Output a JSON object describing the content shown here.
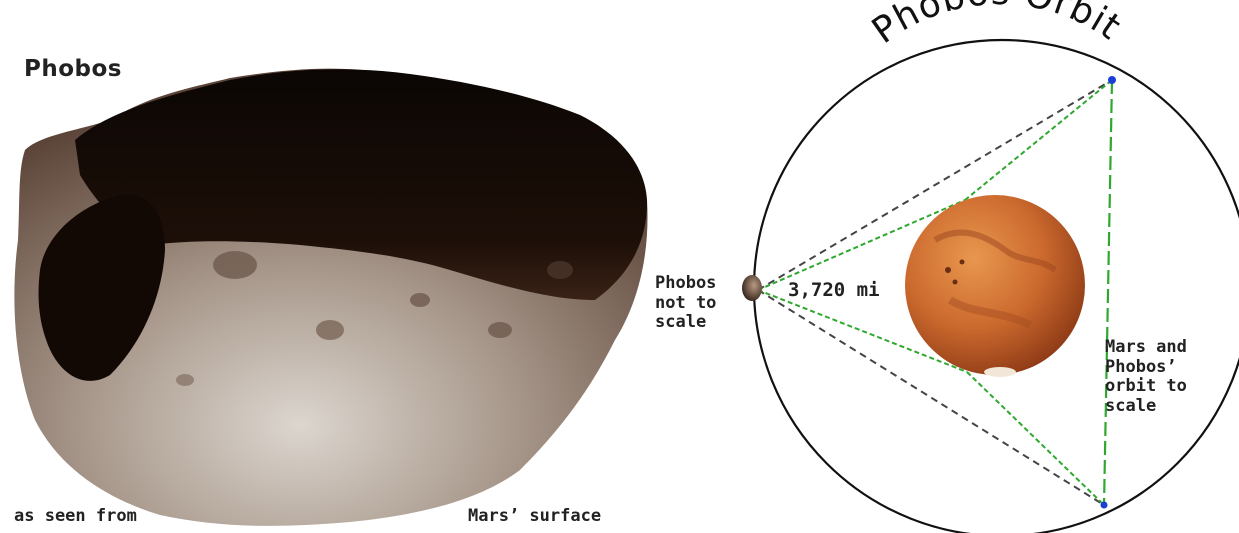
{
  "left_panel": {
    "title": "Phobos",
    "caption_left": "as seen from",
    "caption_right": "Mars’ surface"
  },
  "right_panel": {
    "title": "Phobos Orbit",
    "phobos_label": "Phobos\nnot to\nscale",
    "distance_label": "3,720 mi",
    "scale_label": "Mars and\nPhobos’\norbit to\nscale"
  },
  "colors": {
    "orbit": "#111111",
    "sightline_dashed": "#444444",
    "sightline_green": "#2ea82e",
    "mars": "#c9642b",
    "phobos_dark": "#140a06",
    "phobos_surface": "#9e8d80"
  }
}
